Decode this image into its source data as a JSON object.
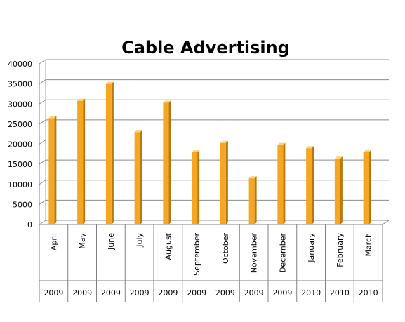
{
  "chart_data": {
    "type": "bar",
    "title": "Cable Advertising",
    "xlabel": "",
    "ylabel": "",
    "ylim": [
      0,
      40000
    ],
    "yticks": [
      0,
      5000,
      10000,
      15000,
      20000,
      25000,
      30000,
      35000,
      40000
    ],
    "grid": true,
    "legend": "none",
    "categories": [
      "April",
      "May",
      "June",
      "July",
      "August",
      "September",
      "October",
      "November",
      "December",
      "January",
      "February",
      "March"
    ],
    "years": [
      "2009",
      "2009",
      "2009",
      "2009",
      "2009",
      "2009",
      "2009",
      "2009",
      "2009",
      "2010",
      "2010",
      "2010"
    ],
    "values": [
      26500,
      30800,
      35000,
      23000,
      30300,
      18000,
      20300,
      11500,
      19800,
      19000,
      16400,
      18000
    ],
    "colors": {
      "bar_front": "#f5a623",
      "bar_side": "#b8780f",
      "bar_top": "#ffd27a",
      "grid": "#8c8c8c",
      "wall_edge": "#a6a6a6"
    }
  }
}
